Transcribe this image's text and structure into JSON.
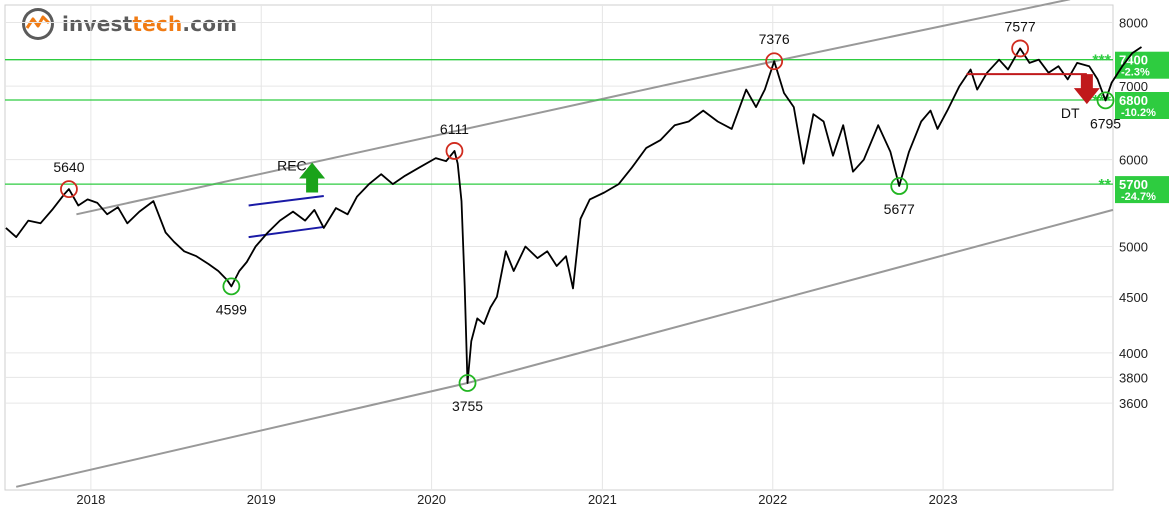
{
  "brand": {
    "prefix": "invest",
    "accent": "tech",
    "suffix": ".com",
    "accent_color": "#f07b14",
    "text_color": "#5b5b5b"
  },
  "chart_data": {
    "type": "line",
    "y_scale": "log",
    "ylim": [
      3000,
      8300
    ],
    "xlim": [
      "2017-07-01",
      "2023-12-31"
    ],
    "grid": true,
    "y_ticks": [
      3600,
      3800,
      4000,
      4500,
      5000,
      6000,
      7000,
      8000
    ],
    "x_ticks": [
      {
        "label": "2018",
        "date": "2018-01-01"
      },
      {
        "label": "2019",
        "date": "2019-01-01"
      },
      {
        "label": "2020",
        "date": "2020-01-01"
      },
      {
        "label": "2021",
        "date": "2021-01-01"
      },
      {
        "label": "2022",
        "date": "2022-01-01"
      },
      {
        "label": "2023",
        "date": "2023-01-01"
      }
    ],
    "series": [
      {
        "values": [
          [
            "2017-07-03",
            5200
          ],
          [
            "2017-07-25",
            5100
          ],
          [
            "2017-08-20",
            5280
          ],
          [
            "2017-09-15",
            5250
          ],
          [
            "2017-10-10",
            5400
          ],
          [
            "2017-11-05",
            5580
          ],
          [
            "2017-11-15",
            5640
          ],
          [
            "2017-12-05",
            5450
          ],
          [
            "2017-12-25",
            5520
          ],
          [
            "2018-01-15",
            5480
          ],
          [
            "2018-02-05",
            5350
          ],
          [
            "2018-02-28",
            5430
          ],
          [
            "2018-03-20",
            5250
          ],
          [
            "2018-04-15",
            5380
          ],
          [
            "2018-05-15",
            5500
          ],
          [
            "2018-06-10",
            5150
          ],
          [
            "2018-06-28",
            5050
          ],
          [
            "2018-07-20",
            4950
          ],
          [
            "2018-08-15",
            4900
          ],
          [
            "2018-09-10",
            4820
          ],
          [
            "2018-10-01",
            4750
          ],
          [
            "2018-10-20",
            4660
          ],
          [
            "2018-10-29",
            4599
          ],
          [
            "2018-11-15",
            4750
          ],
          [
            "2018-12-01",
            4840
          ],
          [
            "2018-12-20",
            5000
          ],
          [
            "2019-01-15",
            5150
          ],
          [
            "2019-02-10",
            5280
          ],
          [
            "2019-03-10",
            5380
          ],
          [
            "2019-04-05",
            5280
          ],
          [
            "2019-04-25",
            5400
          ],
          [
            "2019-05-15",
            5200
          ],
          [
            "2019-06-10",
            5420
          ],
          [
            "2019-07-05",
            5350
          ],
          [
            "2019-07-25",
            5550
          ],
          [
            "2019-08-20",
            5700
          ],
          [
            "2019-09-15",
            5820
          ],
          [
            "2019-10-10",
            5700
          ],
          [
            "2019-11-05",
            5800
          ],
          [
            "2019-12-05",
            5900
          ],
          [
            "2020-01-10",
            6020
          ],
          [
            "2020-02-01",
            5980
          ],
          [
            "2020-02-19",
            6111
          ],
          [
            "2020-02-26",
            5950
          ],
          [
            "2020-03-05",
            5500
          ],
          [
            "2020-03-12",
            4600
          ],
          [
            "2020-03-18",
            3755
          ],
          [
            "2020-03-26",
            4100
          ],
          [
            "2020-04-08",
            4300
          ],
          [
            "2020-04-22",
            4250
          ],
          [
            "2020-05-06",
            4400
          ],
          [
            "2020-05-20",
            4500
          ],
          [
            "2020-06-08",
            4950
          ],
          [
            "2020-06-25",
            4750
          ],
          [
            "2020-07-20",
            5000
          ],
          [
            "2020-08-15",
            4880
          ],
          [
            "2020-09-05",
            4950
          ],
          [
            "2020-09-25",
            4800
          ],
          [
            "2020-10-15",
            4900
          ],
          [
            "2020-10-30",
            4580
          ],
          [
            "2020-11-15",
            5300
          ],
          [
            "2020-12-05",
            5520
          ],
          [
            "2021-01-05",
            5600
          ],
          [
            "2021-02-05",
            5700
          ],
          [
            "2021-03-05",
            5900
          ],
          [
            "2021-04-05",
            6150
          ],
          [
            "2021-05-05",
            6250
          ],
          [
            "2021-06-05",
            6450
          ],
          [
            "2021-07-05",
            6500
          ],
          [
            "2021-08-05",
            6650
          ],
          [
            "2021-09-05",
            6500
          ],
          [
            "2021-10-05",
            6400
          ],
          [
            "2021-11-05",
            6950
          ],
          [
            "2021-11-26",
            6700
          ],
          [
            "2021-12-15",
            6950
          ],
          [
            "2022-01-04",
            7376
          ],
          [
            "2022-01-25",
            6900
          ],
          [
            "2022-02-15",
            6700
          ],
          [
            "2022-03-08",
            5950
          ],
          [
            "2022-03-29",
            6600
          ],
          [
            "2022-04-20",
            6500
          ],
          [
            "2022-05-10",
            6050
          ],
          [
            "2022-06-01",
            6450
          ],
          [
            "2022-06-22",
            5850
          ],
          [
            "2022-07-15",
            6000
          ],
          [
            "2022-08-15",
            6450
          ],
          [
            "2022-09-10",
            6100
          ],
          [
            "2022-09-29",
            5677
          ],
          [
            "2022-10-20",
            6100
          ],
          [
            "2022-11-15",
            6500
          ],
          [
            "2022-12-05",
            6650
          ],
          [
            "2022-12-20",
            6400
          ],
          [
            "2023-01-10",
            6650
          ],
          [
            "2023-02-05",
            7000
          ],
          [
            "2023-03-01",
            7250
          ],
          [
            "2023-03-15",
            6950
          ],
          [
            "2023-04-05",
            7200
          ],
          [
            "2023-05-01",
            7400
          ],
          [
            "2023-05-20",
            7250
          ],
          [
            "2023-06-15",
            7577
          ],
          [
            "2023-07-05",
            7350
          ],
          [
            "2023-07-25",
            7400
          ],
          [
            "2023-08-15",
            7200
          ],
          [
            "2023-09-05",
            7300
          ],
          [
            "2023-09-25",
            7100
          ],
          [
            "2023-10-15",
            7350
          ],
          [
            "2023-11-10",
            7300
          ],
          [
            "2023-11-28",
            7100
          ],
          [
            "2023-12-15",
            6795
          ],
          [
            "2023-12-28",
            7050
          ],
          [
            "2024-01-20",
            7300
          ],
          [
            "2024-02-10",
            7500
          ],
          [
            "2024-03-01",
            7600
          ]
        ]
      }
    ],
    "levels": [
      {
        "value": 7400,
        "label": "7400",
        "pct": "-2.3%",
        "stars": "***"
      },
      {
        "value": 6800,
        "label": "6800",
        "pct": "-10.2%",
        "stars": "***"
      },
      {
        "value": 5700,
        "label": "5700",
        "pct": "-24.7%",
        "stars": "**"
      }
    ],
    "annotations": [
      {
        "text": "5640",
        "date": "2017-11-15",
        "value": 5640,
        "marker": "red"
      },
      {
        "text": "4599",
        "date": "2018-10-29",
        "value": 4599,
        "marker": "green"
      },
      {
        "text": "6111",
        "date": "2020-02-19",
        "value": 6111,
        "marker": "red"
      },
      {
        "text": "3755",
        "date": "2020-03-18",
        "value": 3755,
        "marker": "green"
      },
      {
        "text": "7376",
        "date": "2022-01-04",
        "value": 7376,
        "marker": "red"
      },
      {
        "text": "5677",
        "date": "2022-09-29",
        "value": 5677,
        "marker": "green"
      },
      {
        "text": "7577",
        "date": "2023-06-15",
        "value": 7577,
        "marker": "red"
      },
      {
        "text": "6795",
        "date": "2023-12-15",
        "value": 6795,
        "marker": "green"
      }
    ],
    "signals": [
      {
        "text": "REC",
        "direction": "up",
        "color": "#1aa31a"
      },
      {
        "text": "DT",
        "direction": "down",
        "color": "#c0191b"
      }
    ],
    "colors": {
      "price": "#000000",
      "level": "#2ecc40",
      "trend": "#999999",
      "rectangle": "#1a1aa6",
      "peak": "#d02b1e",
      "trough": "#21b521",
      "grid": "#e6e6e6"
    }
  }
}
